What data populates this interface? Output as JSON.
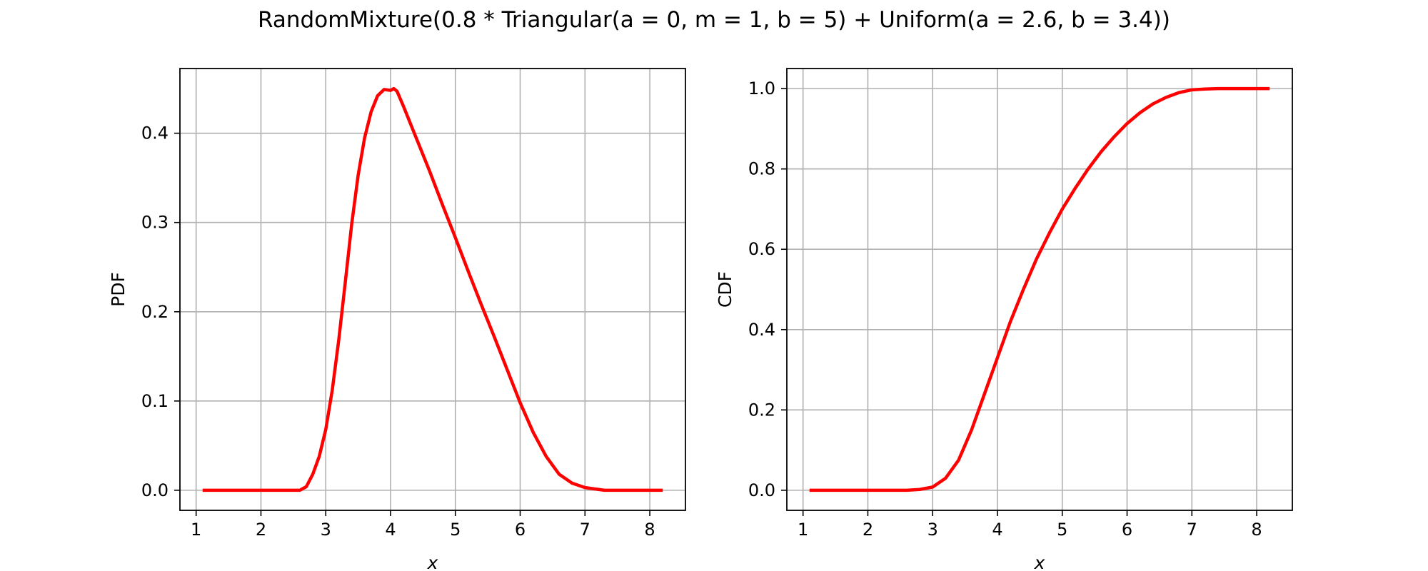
{
  "figure": {
    "title": "RandomMixture(0.8 * Triangular(a = 0, m = 1, b = 5) + Uniform(a = 2.6, b = 3.4))"
  },
  "chart_data": [
    {
      "type": "line",
      "title": "",
      "xlabel": "x",
      "ylabel": "PDF",
      "xlim": [
        0.75,
        8.55
      ],
      "ylim": [
        -0.0225,
        0.4725
      ],
      "xticks": [
        1,
        2,
        3,
        4,
        5,
        6,
        7,
        8
      ],
      "yticks": [
        0.0,
        0.1,
        0.2,
        0.3,
        0.4
      ],
      "ytick_labels": [
        "0.0",
        "0.1",
        "0.2",
        "0.3",
        "0.4"
      ],
      "grid": true,
      "line_color": "#ff0000",
      "series": [
        {
          "x": [
            1.1,
            2.6,
            2.7,
            2.8,
            2.9,
            3.0,
            3.1,
            3.2,
            3.3,
            3.4,
            3.5,
            3.6,
            3.7,
            3.8,
            3.9,
            4.0,
            4.05,
            4.1,
            4.2,
            4.4,
            4.6,
            4.8,
            5.0,
            5.2,
            5.4,
            5.6,
            5.8,
            6.0,
            6.2,
            6.4,
            6.6,
            6.8,
            7.0,
            7.1,
            7.2,
            7.3,
            7.4,
            7.6,
            8.2
          ],
          "y": [
            0.0,
            0.0,
            0.004,
            0.018,
            0.038,
            0.068,
            0.112,
            0.168,
            0.232,
            0.298,
            0.353,
            0.395,
            0.424,
            0.442,
            0.449,
            0.448,
            0.45,
            0.447,
            0.43,
            0.394,
            0.358,
            0.32,
            0.283,
            0.245,
            0.208,
            0.172,
            0.135,
            0.098,
            0.065,
            0.038,
            0.018,
            0.008,
            0.003,
            0.002,
            0.001,
            0.0,
            0.0,
            0.0,
            0.0
          ]
        }
      ]
    },
    {
      "type": "line",
      "title": "",
      "xlabel": "x",
      "ylabel": "CDF",
      "xlim": [
        0.75,
        8.55
      ],
      "ylim": [
        -0.05,
        1.05
      ],
      "xticks": [
        1,
        2,
        3,
        4,
        5,
        6,
        7,
        8
      ],
      "yticks": [
        0.0,
        0.2,
        0.4,
        0.6,
        0.8,
        1.0
      ],
      "ytick_labels": [
        "0.0",
        "0.2",
        "0.4",
        "0.6",
        "0.8",
        "1.0"
      ],
      "grid": true,
      "line_color": "#ff0000",
      "series": [
        {
          "x": [
            1.1,
            2.6,
            2.8,
            3.0,
            3.2,
            3.4,
            3.6,
            3.8,
            4.0,
            4.2,
            4.4,
            4.6,
            4.8,
            5.0,
            5.2,
            5.4,
            5.6,
            5.8,
            6.0,
            6.2,
            6.4,
            6.6,
            6.8,
            7.0,
            7.2,
            7.4,
            8.2
          ],
          "y": [
            0.0,
            0.0,
            0.002,
            0.008,
            0.03,
            0.075,
            0.15,
            0.24,
            0.33,
            0.42,
            0.5,
            0.575,
            0.64,
            0.7,
            0.752,
            0.8,
            0.843,
            0.88,
            0.913,
            0.94,
            0.962,
            0.978,
            0.99,
            0.997,
            0.999,
            1.0,
            1.0
          ]
        }
      ]
    }
  ]
}
